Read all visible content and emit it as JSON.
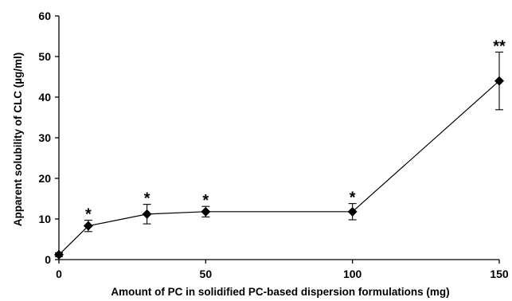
{
  "chart_data": {
    "type": "line",
    "xlabel": "Amount of PC in solidified PC-based dispersion formulations (mg)",
    "ylabel": "Apparent solubility of CLC (µg/ml)",
    "xlim": [
      0,
      150
    ],
    "ylim": [
      0,
      60
    ],
    "x_ticks": [
      "0",
      "50",
      "100",
      "150"
    ],
    "y_ticks": [
      "0",
      "10",
      "20",
      "30",
      "40",
      "50",
      "60"
    ],
    "grid": false,
    "marker": "diamond",
    "series": [
      {
        "color": "#000000",
        "points": [
          {
            "x": 0,
            "y": 1.2,
            "err": 0.5,
            "label": ""
          },
          {
            "x": 10,
            "y": 8.3,
            "err": 1.4,
            "label": "*"
          },
          {
            "x": 30,
            "y": 11.2,
            "err": 2.4,
            "label": "*"
          },
          {
            "x": 50,
            "y": 11.8,
            "err": 1.3,
            "label": "*"
          },
          {
            "x": 100,
            "y": 11.8,
            "err": 2.0,
            "label": "*"
          },
          {
            "x": 150,
            "y": 44.0,
            "err": 7.1,
            "label": "**"
          }
        ]
      }
    ]
  }
}
